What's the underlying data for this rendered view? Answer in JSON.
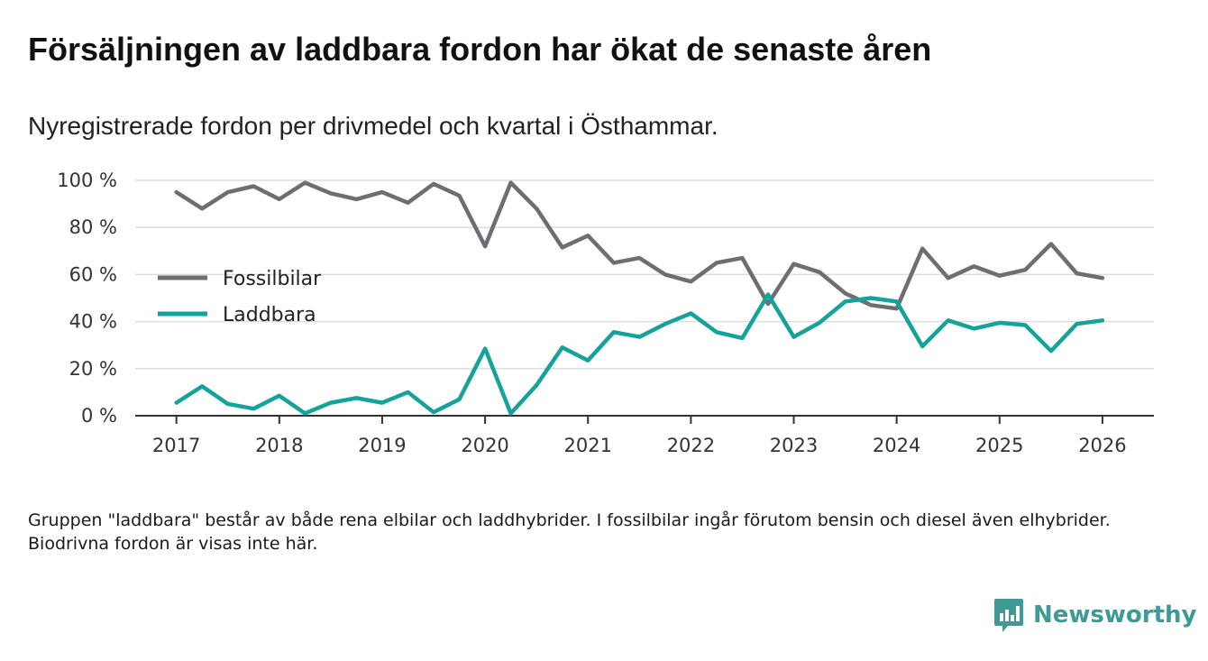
{
  "title": "Försäljningen av laddbara fordon har ökat de senaste åren",
  "subtitle": "Nyregistrerade fordon per drivmedel och kvartal i Östhammar.",
  "note": "Gruppen \"laddbara\" består av både rena elbilar och laddhybrider. I fossilbilar ingår förutom bensin och diesel även elhybrider. Biodrivna fordon är visas inte här.",
  "brand": {
    "name": "Newsworthy",
    "logo_icon": "bar-chart-logo-icon",
    "color": "#3d9a95"
  },
  "chart_data": {
    "type": "line",
    "title": "Försäljningen av laddbara fordon har ökat de senaste åren",
    "xlabel": "",
    "ylabel": "",
    "x_start": 2017.0,
    "x_step": 0.25,
    "xlim": [
      2016.6,
      2026.5
    ],
    "ylim": [
      0,
      100
    ],
    "y_ticks": [
      0,
      20,
      40,
      60,
      80,
      100
    ],
    "y_tick_labels": [
      "0 %",
      "20 %",
      "40 %",
      "60 %",
      "80 %",
      "100 %"
    ],
    "x_ticks": [
      2017,
      2018,
      2019,
      2020,
      2021,
      2022,
      2023,
      2024,
      2025,
      2026
    ],
    "x_tick_labels": [
      "2017",
      "2018",
      "2019",
      "2020",
      "2021",
      "2022",
      "2023",
      "2024",
      "2025",
      "2026"
    ],
    "grid": true,
    "legend_position": "left",
    "series": [
      {
        "name": "Fossilbilar",
        "color": "#6e6d73",
        "values": [
          95,
          88,
          95,
          97.5,
          92,
          99,
          94.5,
          92,
          95,
          90.5,
          98.5,
          93.5,
          72,
          99,
          88,
          71.5,
          76.5,
          65,
          67,
          60,
          57,
          65,
          67,
          47.5,
          64.5,
          61,
          52,
          47,
          45.5,
          71,
          58.5,
          63.5,
          59.5,
          62,
          73,
          60.5,
          58.5
        ]
      },
      {
        "name": "Laddbara",
        "color": "#13a39a",
        "values": [
          5.5,
          12.5,
          5,
          3,
          8.5,
          1,
          5.5,
          7.5,
          5.5,
          10,
          1.5,
          7,
          28.5,
          1,
          13,
          29,
          23.5,
          35.5,
          33.5,
          39,
          43.5,
          35.5,
          33,
          51.5,
          33.5,
          39.5,
          48.5,
          50,
          48.5,
          29.5,
          40.5,
          37,
          39.5,
          38.5,
          27.5,
          39,
          40.5
        ]
      }
    ]
  }
}
